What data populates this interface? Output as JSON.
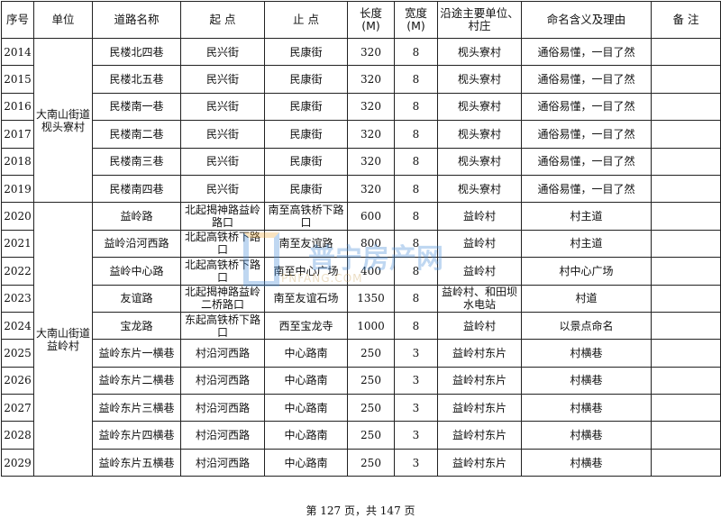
{
  "headers": [
    "序号",
    "单位",
    "道路名称",
    "起 点",
    "止 点",
    "长度\n(M)",
    "宽度\n(M)",
    "沿途主要单位、村庄",
    "命名含义及理由",
    "备 注"
  ],
  "groups": [
    {
      "unit": "大南山街道枧头寮村",
      "rows": [
        {
          "no": "2014",
          "name": "民楼北四巷",
          "start": "民兴街",
          "end": "民康街",
          "length": "320",
          "width": "8",
          "along": "枧头寮村",
          "meaning": "通俗易懂，一目了然",
          "note": ""
        },
        {
          "no": "2015",
          "name": "民楼北五巷",
          "start": "民兴街",
          "end": "民康街",
          "length": "320",
          "width": "8",
          "along": "枧头寮村",
          "meaning": "通俗易懂，一目了然",
          "note": ""
        },
        {
          "no": "2016",
          "name": "民楼南一巷",
          "start": "民兴街",
          "end": "民康街",
          "length": "320",
          "width": "8",
          "along": "枧头寮村",
          "meaning": "通俗易懂，一目了然",
          "note": ""
        },
        {
          "no": "2017",
          "name": "民楼南二巷",
          "start": "民兴街",
          "end": "民康街",
          "length": "320",
          "width": "8",
          "along": "枧头寮村",
          "meaning": "通俗易懂，一目了然",
          "note": ""
        },
        {
          "no": "2018",
          "name": "民楼南三巷",
          "start": "民兴街",
          "end": "民康街",
          "length": "320",
          "width": "8",
          "along": "枧头寮村",
          "meaning": "通俗易懂，一目了然",
          "note": ""
        },
        {
          "no": "2019",
          "name": "民楼南四巷",
          "start": "民兴街",
          "end": "民康街",
          "length": "320",
          "width": "8",
          "along": "枧头寮村",
          "meaning": "通俗易懂，一目了然",
          "note": ""
        }
      ]
    },
    {
      "unit": "大南山街道益岭村",
      "rows": [
        {
          "no": "2020",
          "name": "益岭路",
          "start": "北起揭神路益岭路口",
          "end": "南至高铁桥下路口",
          "length": "600",
          "width": "8",
          "along": "益岭村",
          "meaning": "村主道",
          "note": ""
        },
        {
          "no": "2021",
          "name": "益岭沿河西路",
          "start": "北起高铁桥下路口",
          "end": "南至友谊路",
          "length": "800",
          "width": "8",
          "along": "益岭村",
          "meaning": "村主道",
          "note": ""
        },
        {
          "no": "2022",
          "name": "益岭中心路",
          "start": "北起高铁桥下路口",
          "end": "南至中心广场",
          "length": "400",
          "width": "8",
          "along": "益岭村",
          "meaning": "村中心广场",
          "note": ""
        },
        {
          "no": "2023",
          "name": "友谊路",
          "start": "北起揭神路益岭二桥路口",
          "end": "南至友谊石场",
          "length": "1350",
          "width": "8",
          "along": "益岭村、和田坝水电站",
          "meaning": "村道",
          "note": ""
        },
        {
          "no": "2024",
          "name": "宝龙路",
          "start": "东起高铁桥下路口",
          "end": "西至宝龙寺",
          "length": "1000",
          "width": "8",
          "along": "益岭村",
          "meaning": "以景点命名",
          "note": ""
        },
        {
          "no": "2025",
          "name": "益岭东片一横巷",
          "start": "村沿河西路",
          "end": "中心路南",
          "length": "250",
          "width": "3",
          "along": "益岭村东片",
          "meaning": "村横巷",
          "note": ""
        },
        {
          "no": "2026",
          "name": "益岭东片二横巷",
          "start": "村沿河西路",
          "end": "中心路南",
          "length": "250",
          "width": "3",
          "along": "益岭村东片",
          "meaning": "村横巷",
          "note": ""
        },
        {
          "no": "2027",
          "name": "益岭东片三横巷",
          "start": "村沿河西路",
          "end": "中心路南",
          "length": "250",
          "width": "3",
          "along": "益岭村东片",
          "meaning": "村横巷",
          "note": ""
        },
        {
          "no": "2028",
          "name": "益岭东片四横巷",
          "start": "村沿河西路",
          "end": "中心路南",
          "length": "250",
          "width": "3",
          "along": "益岭村东片",
          "meaning": "村横巷",
          "note": ""
        },
        {
          "no": "2029",
          "name": "益岭东片五横巷",
          "start": "村沿河西路",
          "end": "中心路南",
          "length": "250",
          "width": "3",
          "along": "益岭村东片",
          "meaning": "村横巷",
          "note": ""
        }
      ]
    }
  ],
  "watermark": {
    "text": "普宁房产网",
    "sub": "PNFANG.COM"
  },
  "footer": "第 127 页，共 147 页"
}
